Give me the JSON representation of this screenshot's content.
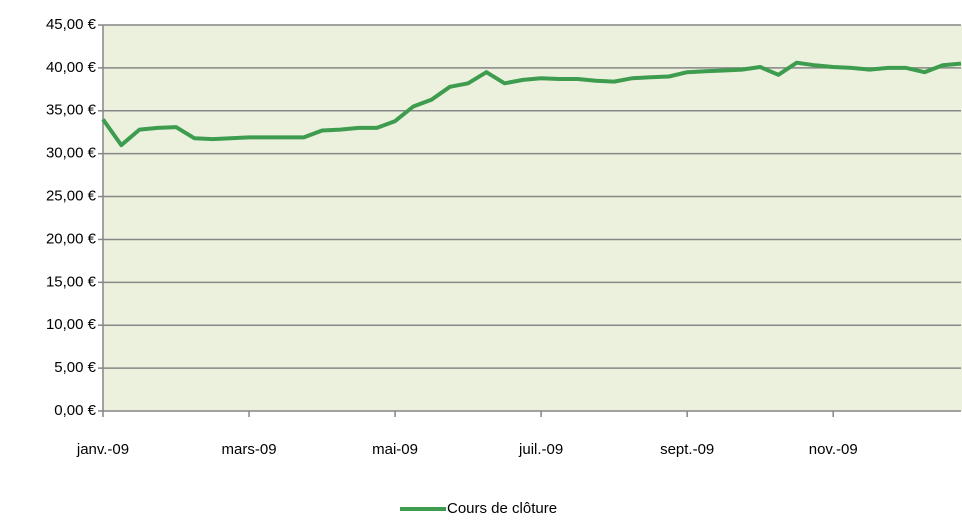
{
  "chart_data": {
    "type": "line",
    "categories": [
      "janv.-09",
      null,
      null,
      null,
      null,
      null,
      null,
      null,
      "mars-09",
      null,
      null,
      null,
      null,
      null,
      null,
      null,
      "mai-09",
      null,
      null,
      null,
      null,
      null,
      null,
      null,
      "juil.-09",
      null,
      null,
      null,
      null,
      null,
      null,
      null,
      "sept.-09",
      null,
      null,
      null,
      null,
      null,
      null,
      null,
      "nov.-09",
      null,
      null,
      null,
      null,
      null,
      null,
      null
    ],
    "series": [
      {
        "name": "Cours de clôture",
        "color": "#3e9c4f",
        "values": [
          34.0,
          31.0,
          32.8,
          33.0,
          33.1,
          31.8,
          31.7,
          31.8,
          31.9,
          31.9,
          31.9,
          31.9,
          32.7,
          32.8,
          33.0,
          33.0,
          33.8,
          35.5,
          36.3,
          37.8,
          38.2,
          39.5,
          38.2,
          38.6,
          38.8,
          38.7,
          38.7,
          38.5,
          38.4,
          38.8,
          38.9,
          39.0,
          39.5,
          39.6,
          39.7,
          39.8,
          40.1,
          39.2,
          40.6,
          40.3,
          40.1,
          40.0,
          39.8,
          40.0,
          40.0,
          39.5,
          40.3,
          40.5
        ]
      }
    ],
    "ylim": [
      0,
      45
    ],
    "yticks": [
      {
        "value": 0,
        "label": "0,00 €"
      },
      {
        "value": 5,
        "label": "5,00 €"
      },
      {
        "value": 10,
        "label": "10,00 €"
      },
      {
        "value": 15,
        "label": "15,00 €"
      },
      {
        "value": 20,
        "label": "20,00 €"
      },
      {
        "value": 25,
        "label": "25,00 €"
      },
      {
        "value": 30,
        "label": "30,00 €"
      },
      {
        "value": 35,
        "label": "35,00 €"
      },
      {
        "value": 40,
        "label": "40,00 €"
      },
      {
        "value": 45,
        "label": "45,00 €"
      }
    ],
    "grid": true,
    "legend": "bottom",
    "plot_background": "#ecf1dd"
  }
}
